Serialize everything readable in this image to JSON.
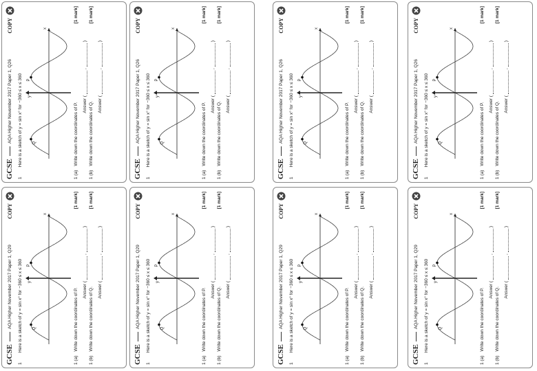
{
  "brand": "GCSE",
  "copy": "COPY",
  "question_number": "1",
  "intro": "Here is a sketch of y = sin x° for −360 ≤ x ≤ 360",
  "graph_labels": {
    "x": "x",
    "y": "y",
    "p": "P",
    "q": "Q"
  },
  "parts": [
    {
      "label": "1 (a)",
      "text": "Write down the coordinates of P.",
      "marks": "[1 mark]",
      "answer_open": "Answer (",
      "comma": ",",
      "answer_close": ")"
    },
    {
      "label": "1 (b)",
      "text": "Write down the coordinates of Q.",
      "marks": "[1 mark]",
      "answer_open": "Answer (",
      "comma": ",",
      "answer_close": ")"
    }
  ],
  "cards": [
    {
      "source": "AQA Higher November 2017 Paper 1, Q26"
    },
    {
      "source": "AQA Higher November 2017 Paper 1, Q26"
    },
    {
      "source": "AQA Higher November 2017 Paper 1, Q26"
    },
    {
      "source": "AQA Higher November 2017 Paper 1, Q26"
    },
    {
      "source": "AQA Higher November 2017 Paper 1, Q29"
    },
    {
      "source": "AQA Higher November 2017 Paper 1, Q29"
    },
    {
      "source": "AQA Higher November 2017 Paper 1, Q29"
    },
    {
      "source": "AQA Higher November 2017 Paper 1, Q29"
    }
  ]
}
